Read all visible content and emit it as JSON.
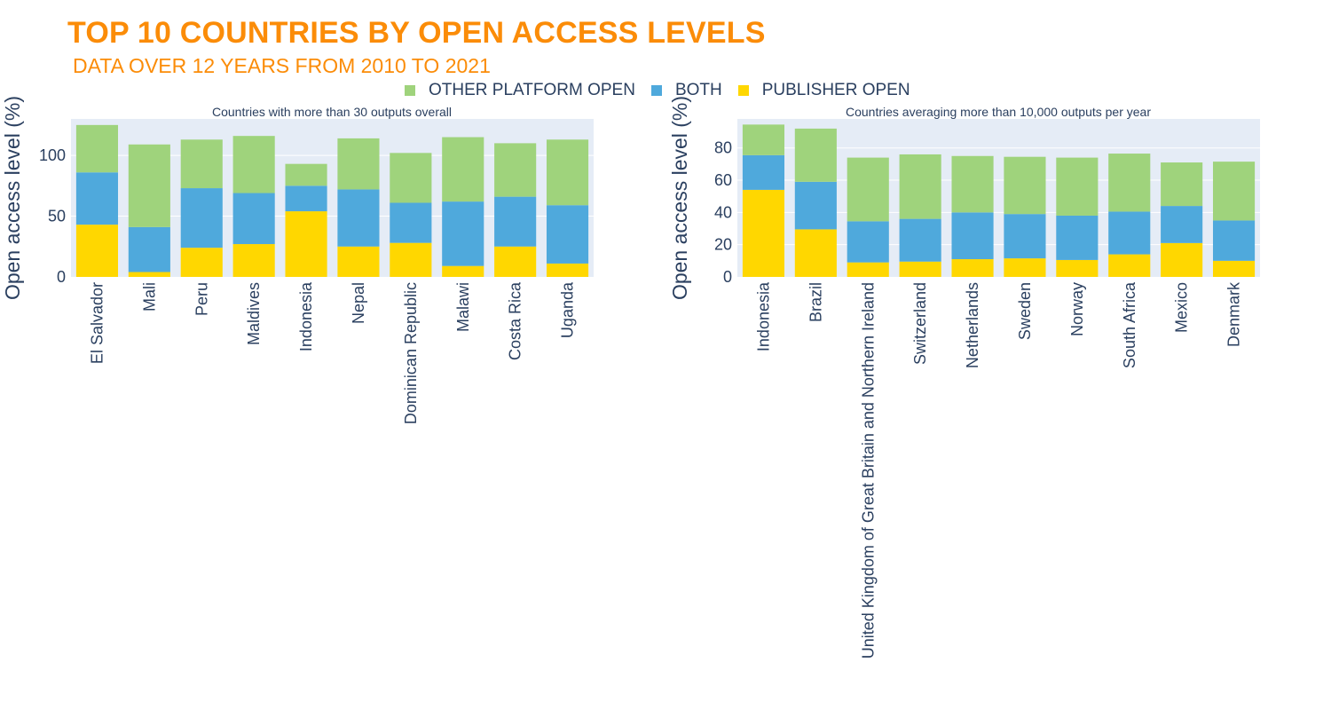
{
  "title": "TOP 10 COUNTRIES BY OPEN ACCESS LEVELS",
  "subtitle": "DATA OVER 12 YEARS FROM 2010 TO 2021",
  "colors": {
    "publisher_open": "#FFD700",
    "both": "#4FA9DC",
    "other_platform_open": "#9FD37C",
    "plot_bg": "#E5ECF6",
    "grid": "#ffffff"
  },
  "legend": {
    "items": [
      {
        "label": "OTHER PLATFORM OPEN",
        "color": "#9FD37C"
      },
      {
        "label": "BOTH",
        "color": "#4FA9DC"
      },
      {
        "label": "PUBLISHER OPEN",
        "color": "#FFD700"
      }
    ]
  },
  "chart_data": [
    {
      "type": "bar",
      "stacked": true,
      "title": "Countries with more than 30 outputs overall",
      "ylabel": "Open access level (%)",
      "ylim": [
        0,
        130
      ],
      "yticks": [
        0,
        50,
        100
      ],
      "categories": [
        "El Salvador",
        "Mali",
        "Peru",
        "Maldives",
        "Indonesia",
        "Nepal",
        "Dominican Republic",
        "Malawi",
        "Costa Rica",
        "Uganda"
      ],
      "series": [
        {
          "name": "PUBLISHER OPEN",
          "values": [
            43,
            4,
            24,
            27,
            54,
            25,
            28,
            9,
            25,
            11
          ]
        },
        {
          "name": "BOTH",
          "values": [
            43,
            37,
            49,
            42,
            21,
            47,
            33,
            53,
            41,
            48
          ]
        },
        {
          "name": "OTHER PLATFORM OPEN",
          "values": [
            39,
            68,
            40,
            47,
            18,
            42,
            41,
            53,
            44,
            54
          ]
        }
      ]
    },
    {
      "type": "bar",
      "stacked": true,
      "title": "Countries averaging more than 10,000 outputs per year",
      "ylabel": "Open access level (%)",
      "ylim": [
        0,
        98
      ],
      "yticks": [
        0,
        20,
        40,
        60,
        80
      ],
      "categories": [
        "Indonesia",
        "Brazil",
        "United Kingdom of Great Britain and Northern Ireland",
        "Switzerland",
        "Netherlands",
        "Sweden",
        "Norway",
        "South Africa",
        "Mexico",
        "Denmark"
      ],
      "series": [
        {
          "name": "PUBLISHER OPEN",
          "values": [
            54,
            29.5,
            9,
            9.5,
            11,
            11.5,
            10.5,
            14,
            21,
            10
          ]
        },
        {
          "name": "BOTH",
          "values": [
            21.5,
            29.5,
            25.5,
            26.5,
            29,
            27.5,
            27.5,
            26.5,
            23,
            25
          ]
        },
        {
          "name": "OTHER PLATFORM OPEN",
          "values": [
            19,
            33,
            39.5,
            40,
            35,
            35.5,
            36,
            36,
            27,
            36.5
          ]
        }
      ]
    }
  ]
}
